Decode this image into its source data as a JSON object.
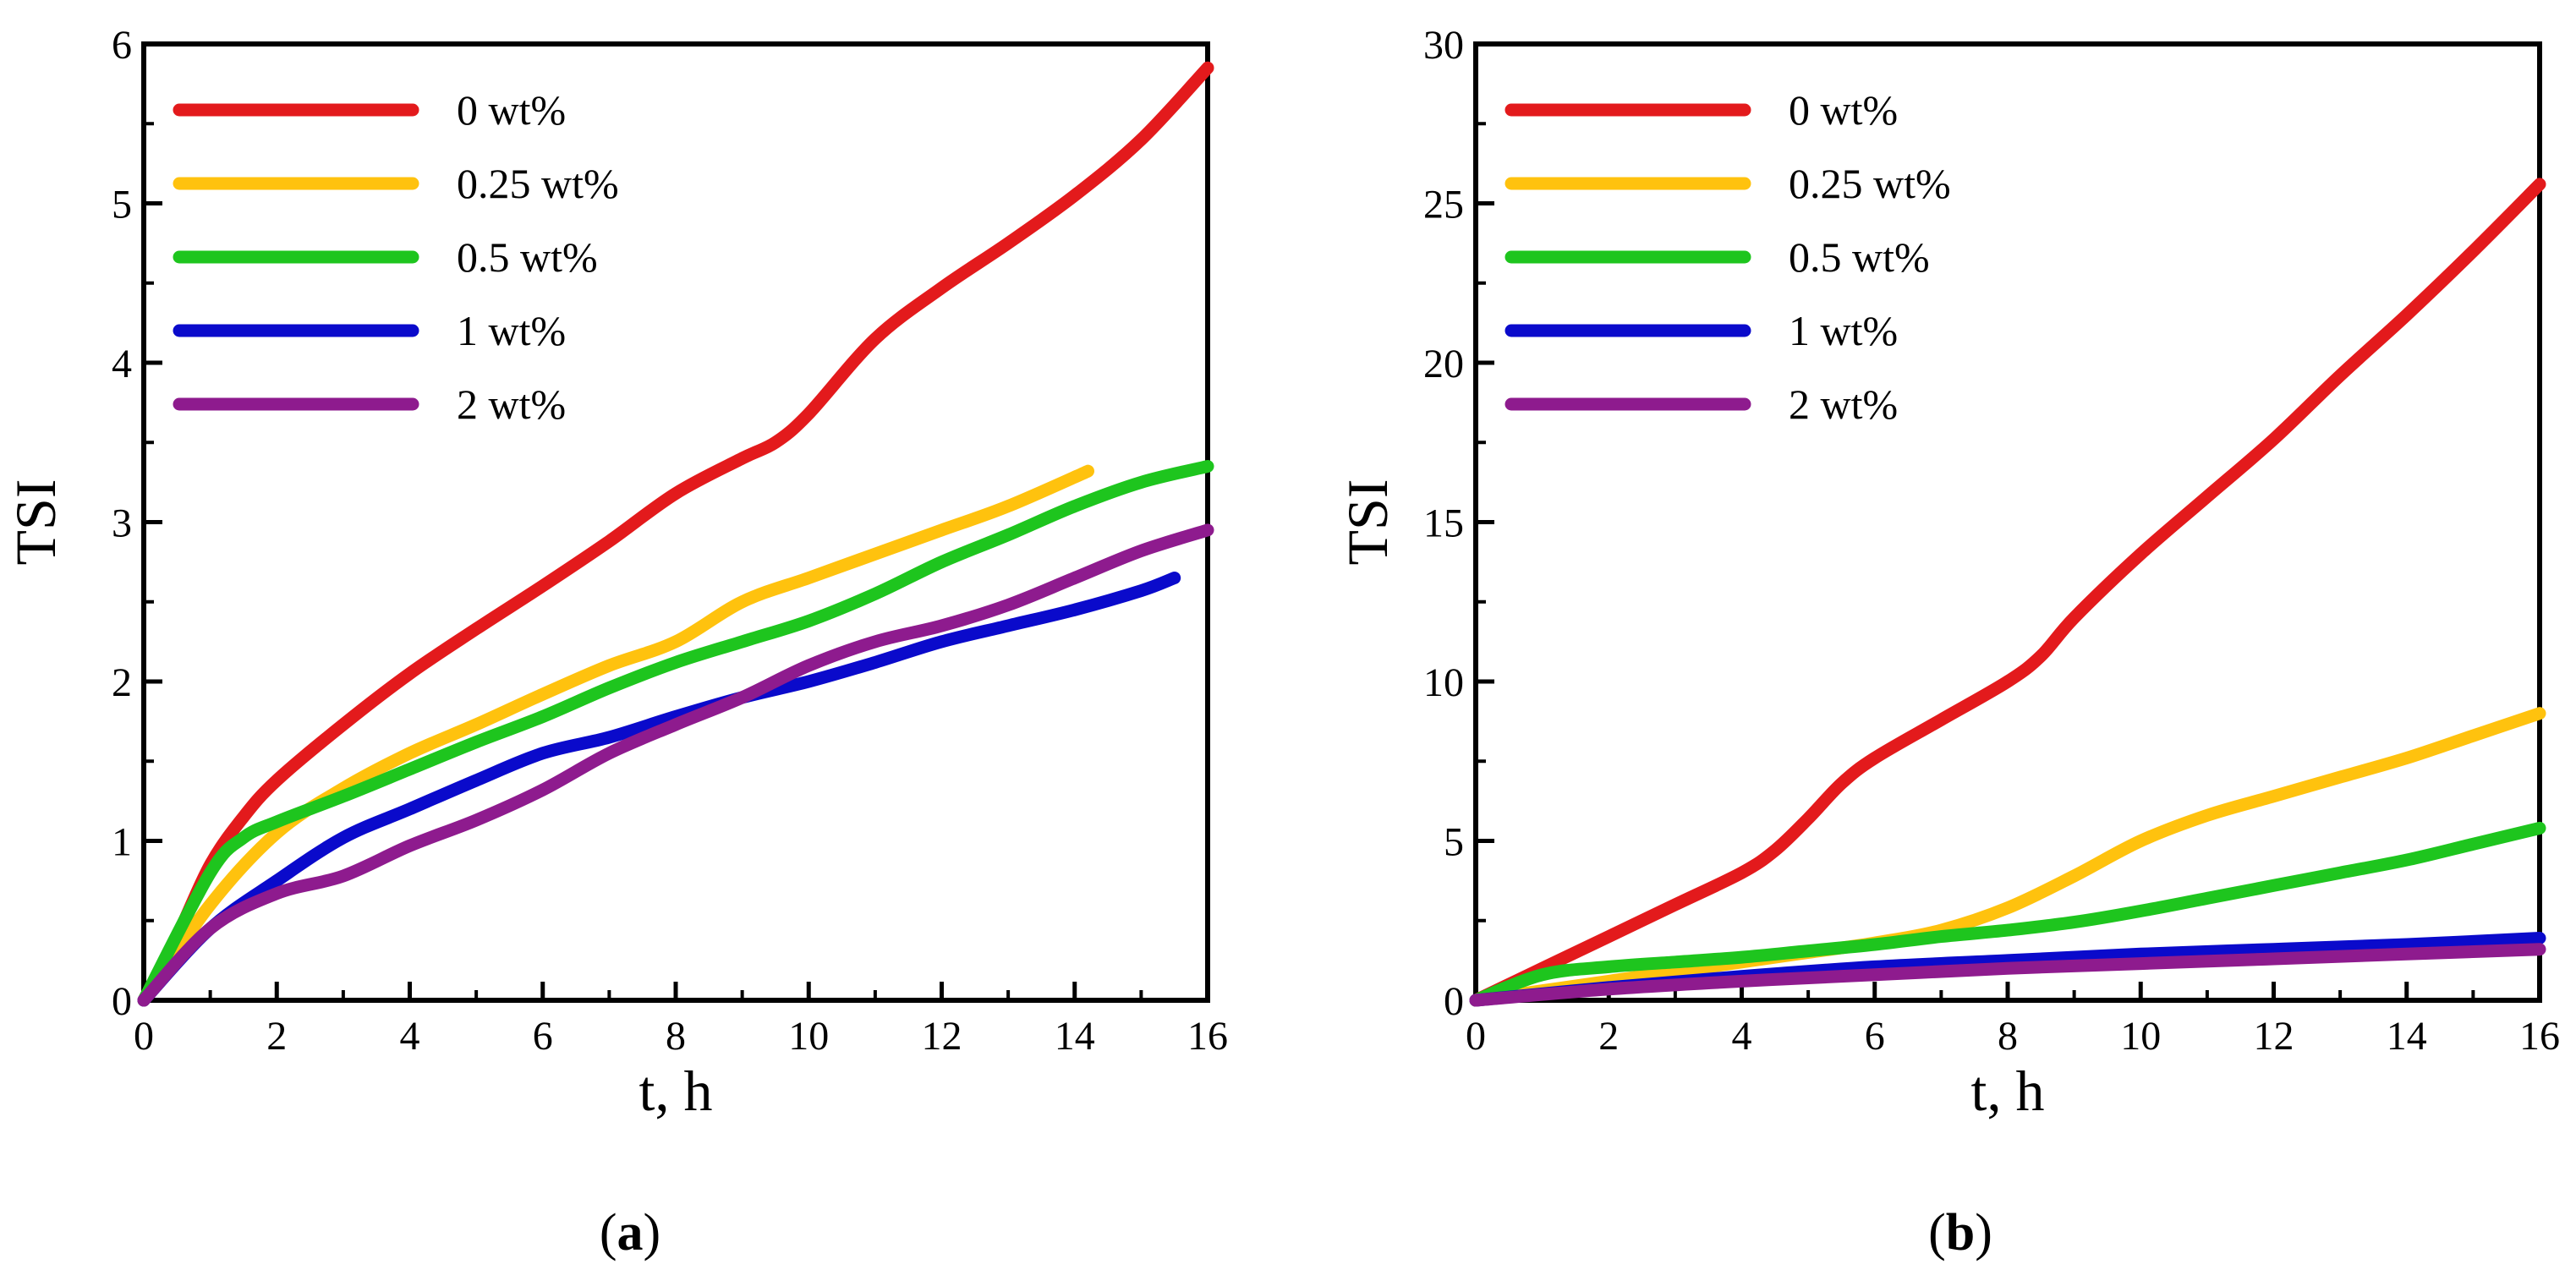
{
  "chart_data": [
    {
      "type": "line",
      "panel_label": "a",
      "xlabel": "t, h",
      "ylabel": "TSI",
      "xlim": [
        0,
        16
      ],
      "ylim": [
        0,
        6
      ],
      "xticks": [
        0,
        2,
        4,
        6,
        8,
        10,
        12,
        14,
        16
      ],
      "yticks": [
        0,
        1,
        2,
        3,
        4,
        5,
        6
      ],
      "grid": false,
      "legend_position": "top-left",
      "series": [
        {
          "name": "0 wt%",
          "color": "#e31a1c",
          "x": [
            0,
            0.5,
            1,
            1.5,
            2,
            3,
            4,
            5,
            6,
            7,
            8,
            9,
            9.5,
            10,
            11,
            12,
            13,
            14,
            15,
            16
          ],
          "y": [
            0,
            0.4,
            0.85,
            1.15,
            1.38,
            1.73,
            2.05,
            2.33,
            2.6,
            2.88,
            3.18,
            3.4,
            3.5,
            3.68,
            4.15,
            4.47,
            4.75,
            5.05,
            5.4,
            5.85
          ]
        },
        {
          "name": "0.25 wt%",
          "color": "#ffc20e",
          "x": [
            0,
            1,
            2,
            3,
            4,
            5,
            6,
            7,
            8,
            9,
            10,
            11,
            12,
            13,
            14.2
          ],
          "y": [
            0,
            0.6,
            1.05,
            1.33,
            1.55,
            1.73,
            1.92,
            2.1,
            2.25,
            2.5,
            2.65,
            2.8,
            2.95,
            3.1,
            3.32
          ]
        },
        {
          "name": "0.5 wt%",
          "color": "#1ec51e",
          "x": [
            0,
            1,
            1.5,
            2,
            3,
            4,
            5,
            6,
            7,
            8,
            9,
            10,
            11,
            12,
            13,
            14,
            15,
            16
          ],
          "y": [
            0,
            0.8,
            1.02,
            1.12,
            1.28,
            1.45,
            1.62,
            1.78,
            1.96,
            2.12,
            2.25,
            2.38,
            2.55,
            2.75,
            2.92,
            3.1,
            3.25,
            3.35
          ]
        },
        {
          "name": "1 wt%",
          "color": "#0a0acb",
          "x": [
            0,
            1,
            2,
            3,
            4,
            5,
            6,
            7,
            8,
            9,
            10,
            11,
            12,
            13,
            14,
            15,
            15.5
          ],
          "y": [
            0,
            0.45,
            0.75,
            1.02,
            1.2,
            1.38,
            1.55,
            1.65,
            1.78,
            1.9,
            2.0,
            2.12,
            2.25,
            2.35,
            2.45,
            2.57,
            2.65
          ]
        },
        {
          "name": "2 wt%",
          "color": "#8e1b8e",
          "x": [
            0,
            1,
            2,
            3,
            4,
            5,
            6,
            7,
            8,
            9,
            10,
            11,
            12,
            13,
            14,
            15,
            16
          ],
          "y": [
            0,
            0.45,
            0.67,
            0.78,
            0.97,
            1.13,
            1.32,
            1.55,
            1.73,
            1.9,
            2.1,
            2.25,
            2.35,
            2.48,
            2.65,
            2.82,
            2.95
          ]
        }
      ]
    },
    {
      "type": "line",
      "panel_label": "b",
      "xlabel": "t, h",
      "ylabel": "TSI",
      "xlim": [
        0,
        16
      ],
      "ylim": [
        0,
        30
      ],
      "xticks": [
        0,
        2,
        4,
        6,
        8,
        10,
        12,
        14,
        16
      ],
      "yticks": [
        0,
        5,
        10,
        15,
        20,
        25,
        30
      ],
      "grid": false,
      "legend_position": "top-left",
      "series": [
        {
          "name": "0 wt%",
          "color": "#e31a1c",
          "x": [
            0,
            1,
            2,
            3,
            4,
            4.5,
            5,
            5.5,
            6,
            7,
            8,
            8.5,
            9,
            10,
            11,
            12,
            13,
            14,
            15,
            16
          ],
          "y": [
            0,
            1.0,
            2.0,
            3.0,
            4.0,
            4.7,
            5.7,
            6.8,
            7.6,
            8.8,
            10.0,
            10.8,
            12.0,
            14.0,
            15.8,
            17.6,
            19.6,
            21.5,
            23.5,
            25.6
          ]
        },
        {
          "name": "0.25 wt%",
          "color": "#ffc20e",
          "x": [
            0,
            1,
            2,
            3,
            4,
            5,
            6,
            7,
            8,
            9,
            10,
            11,
            12,
            13,
            14,
            15,
            16
          ],
          "y": [
            0,
            0.3,
            0.6,
            0.9,
            1.2,
            1.5,
            1.8,
            2.2,
            2.9,
            3.9,
            5.0,
            5.8,
            6.4,
            7.0,
            7.6,
            8.3,
            9.0
          ]
        },
        {
          "name": "0.5 wt%",
          "color": "#1ec51e",
          "x": [
            0,
            1,
            2,
            3,
            4,
            5,
            6,
            7,
            8,
            9,
            10,
            11,
            12,
            13,
            14,
            15,
            16
          ],
          "y": [
            0,
            0.8,
            1.05,
            1.2,
            1.35,
            1.55,
            1.75,
            2.0,
            2.2,
            2.45,
            2.8,
            3.2,
            3.6,
            4.0,
            4.4,
            4.9,
            5.4
          ]
        },
        {
          "name": "1 wt%",
          "color": "#0a0acb",
          "x": [
            0,
            2,
            4,
            6,
            8,
            10,
            12,
            14,
            16
          ],
          "y": [
            0,
            0.4,
            0.75,
            1.05,
            1.25,
            1.45,
            1.6,
            1.75,
            1.95
          ]
        },
        {
          "name": "2 wt%",
          "color": "#8e1b8e",
          "x": [
            0,
            2,
            4,
            6,
            8,
            10,
            12,
            14,
            16
          ],
          "y": [
            0,
            0.35,
            0.6,
            0.8,
            1.0,
            1.15,
            1.3,
            1.45,
            1.6
          ]
        }
      ]
    }
  ]
}
